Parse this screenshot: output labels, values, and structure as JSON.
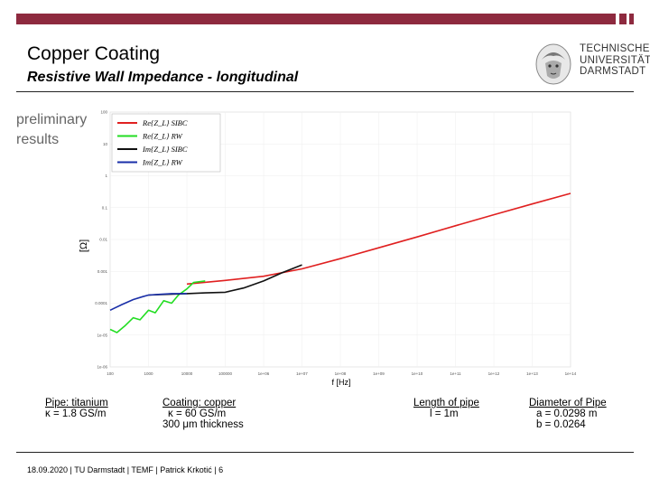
{
  "colors": {
    "brand": "#8e2a3f",
    "re_sibc": "#e02020",
    "re_rw": "#22dd22",
    "im_sibc": "#111111",
    "im_rw": "#1a2fa8"
  },
  "header": {
    "title": "Copper Coating",
    "subtitle": "Resistive Wall Impedance - longitudinal"
  },
  "logo": {
    "line1": "TECHNISCHE",
    "line2": "UNIVERSITÄT",
    "line3": "DARMSTADT"
  },
  "side_note": "preliminary results",
  "chart_data": {
    "type": "line",
    "xscale": "log",
    "yscale": "log",
    "xlabel": "f [Hz]",
    "ylabel": "[Ω]",
    "xlim": [
      100,
      100000000000000.0
    ],
    "ylim": [
      1e-06,
      100
    ],
    "x_ticks": [
      "100",
      "1000",
      "10000",
      "100000",
      "1e+06",
      "1e+07",
      "1e+08",
      "1e+09",
      "1e+10",
      "1e+11",
      "1e+12",
      "1e+13",
      "1e+14"
    ],
    "y_ticks": [
      "1e-06",
      "1e-05",
      "0.0001",
      "0.001",
      "0.01",
      "0.1",
      "1",
      "10",
      "100"
    ],
    "legend": [
      "Re{Z_L} SIBC",
      "Re{Z_L} RW",
      "Im{Z_L} SIBC",
      "Im{Z_L} RW"
    ],
    "series": [
      {
        "name": "Re{Z_L} SIBC",
        "color": "#e02020",
        "x": [
          10000,
          100000,
          1000000,
          10000000,
          100000000,
          1000000000,
          10000000000,
          100000000000,
          1000000000000,
          10000000000000,
          100000000000000
        ],
        "y": [
          0.0004,
          0.00052,
          0.0007,
          0.0012,
          0.0025,
          0.0055,
          0.012,
          0.027,
          0.06,
          0.13,
          0.28
        ]
      },
      {
        "name": "Re{Z_L} RW",
        "color": "#22dd22",
        "x": [
          100,
          150,
          250,
          400,
          600,
          1000,
          1500,
          2500,
          4000,
          6000,
          10000,
          15000,
          30000
        ],
        "y": [
          1.5e-05,
          1.2e-05,
          2e-05,
          3.5e-05,
          3e-05,
          6e-05,
          5e-05,
          0.00012,
          0.0001,
          0.00018,
          0.00028,
          0.00045,
          0.0005
        ]
      },
      {
        "name": "Im{Z_L} SIBC",
        "color": "#111111",
        "x": [
          1000,
          3000,
          10000,
          30000,
          100000,
          300000,
          1000000,
          3000000,
          10000000
        ],
        "y": [
          0.00018,
          0.00019,
          0.0002,
          0.00021,
          0.00022,
          0.0003,
          0.0005,
          0.0009,
          0.0016
        ]
      },
      {
        "name": "Im{Z_L} RW",
        "color": "#1a2fa8",
        "x": [
          100,
          200,
          400,
          700,
          1000,
          2000,
          4000,
          7000,
          10000
        ],
        "y": [
          6e-05,
          9e-05,
          0.00013,
          0.00016,
          0.00018,
          0.00019,
          0.0002,
          0.0002,
          0.0002
        ]
      }
    ]
  },
  "params": {
    "pipe": {
      "head": "Pipe: titanium",
      "line1": "κ = 1.8 GS/m"
    },
    "coating": {
      "head": "Coating: copper",
      "line1": "κ = 60 GS/m",
      "line2": "300 μm thickness"
    },
    "length": {
      "head": "Length of pipe",
      "line1": "l = 1m"
    },
    "diameter": {
      "head": "Diameter of Pipe",
      "line1": "a = 0.0298 m",
      "line2": "b = 0.0264"
    }
  },
  "footer": {
    "text": "18.09.2020 | TU Darmstadt | TEMF | Patrick Krkotić | 6"
  }
}
